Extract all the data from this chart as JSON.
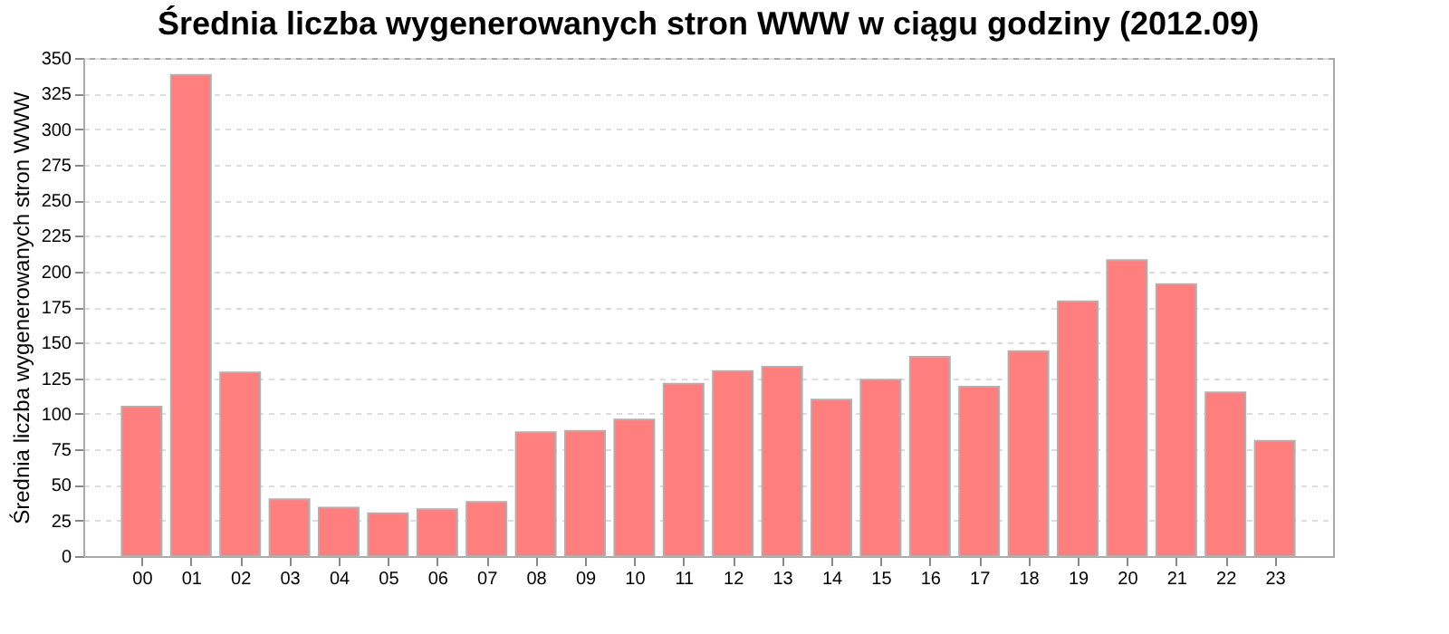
{
  "chart_data": {
    "type": "bar",
    "title": "Średnia liczba wygenerowanych stron WWW w ciągu godziny (2012.09)",
    "ylabel": "Średnia liczba wygenerowanych stron WWW",
    "categories": [
      "00",
      "01",
      "02",
      "03",
      "04",
      "05",
      "06",
      "07",
      "08",
      "09",
      "10",
      "11",
      "12",
      "13",
      "14",
      "15",
      "16",
      "17",
      "18",
      "19",
      "20",
      "21",
      "22",
      "23"
    ],
    "values": [
      105,
      338,
      129,
      40,
      34,
      30,
      33,
      38,
      87,
      88,
      96,
      121,
      130,
      133,
      110,
      124,
      140,
      119,
      144,
      179,
      208,
      191,
      115,
      81
    ],
    "color": "#ff7f7f",
    "ylim": [
      0,
      350
    ],
    "yticks": [
      0,
      25,
      50,
      75,
      100,
      125,
      150,
      175,
      200,
      225,
      250,
      275,
      300,
      325,
      350
    ],
    "grid": "y"
  }
}
